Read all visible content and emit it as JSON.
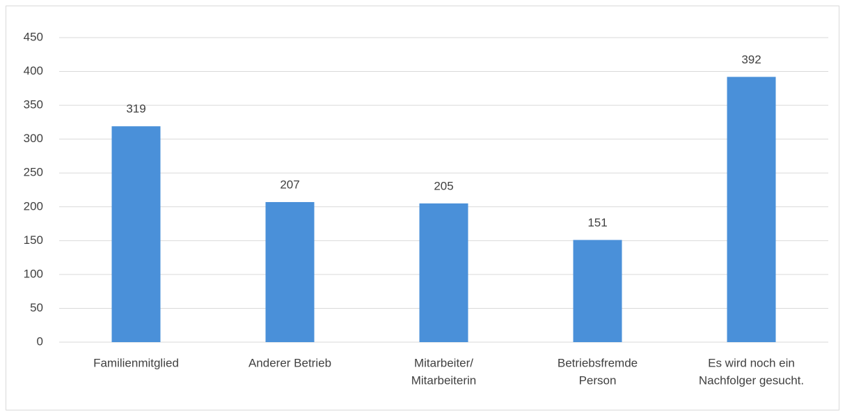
{
  "chart_data": {
    "type": "bar",
    "categories": [
      [
        "Familienmitglied"
      ],
      [
        "Anderer Betrieb"
      ],
      [
        "Mitarbeiter/",
        "Mitarbeiterin"
      ],
      [
        "Betriebsfremde",
        "Person"
      ],
      [
        "Es wird noch ein",
        "Nachfolger gesucht."
      ]
    ],
    "values": [
      319,
      207,
      205,
      151,
      392
    ],
    "color": "#4a90d9",
    "ylim": [
      0,
      450
    ],
    "yticks": [
      0,
      50,
      100,
      150,
      200,
      250,
      300,
      350,
      400,
      450
    ],
    "grid": true
  }
}
